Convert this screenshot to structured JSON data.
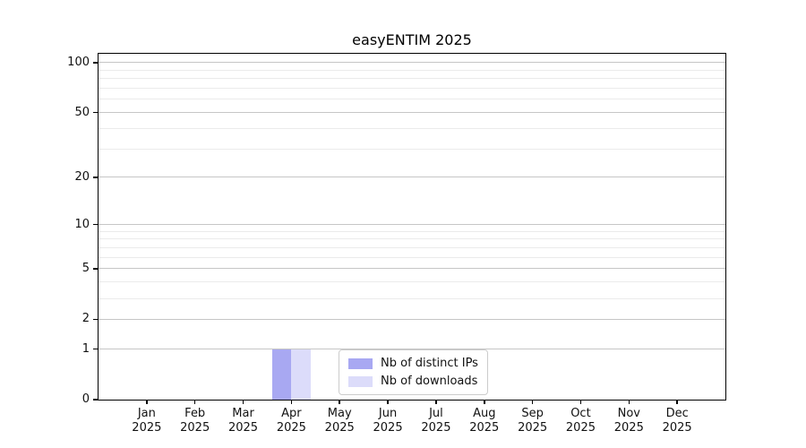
{
  "chart_data": {
    "type": "bar",
    "title": "easyENTIM 2025",
    "x_tick_months": [
      "Jan",
      "Feb",
      "Mar",
      "Apr",
      "May",
      "Jun",
      "Jul",
      "Aug",
      "Sep",
      "Oct",
      "Nov",
      "Dec"
    ],
    "x_tick_year": "2025",
    "series": [
      {
        "name": "Nb of distinct IPs",
        "color": "#a8a8f2",
        "values": [
          0,
          0,
          0,
          1,
          0,
          0,
          0,
          0,
          0,
          0,
          0,
          0
        ]
      },
      {
        "name": "Nb of downloads",
        "color": "#dcdcfa",
        "values": [
          0,
          0,
          0,
          1,
          0,
          0,
          0,
          0,
          0,
          0,
          0,
          0
        ]
      }
    ],
    "yscale": "log1p",
    "ylim": [
      0,
      113
    ],
    "y_major_ticks": [
      0,
      1,
      2,
      5,
      10,
      20,
      50,
      100
    ],
    "y_minor_ticks": [
      3,
      4,
      6,
      7,
      8,
      9,
      30,
      40,
      60,
      70,
      80,
      90
    ],
    "grid": true,
    "legend_position": "lower center",
    "xlabel": "",
    "ylabel": ""
  },
  "style": {
    "grid_major_color": "#c6c6c6",
    "grid_minor_color": "#ebebeb",
    "frame_color": "#000000",
    "text_color": "#111111",
    "legend_border_color": "#cccccc",
    "background": "#ffffff"
  }
}
